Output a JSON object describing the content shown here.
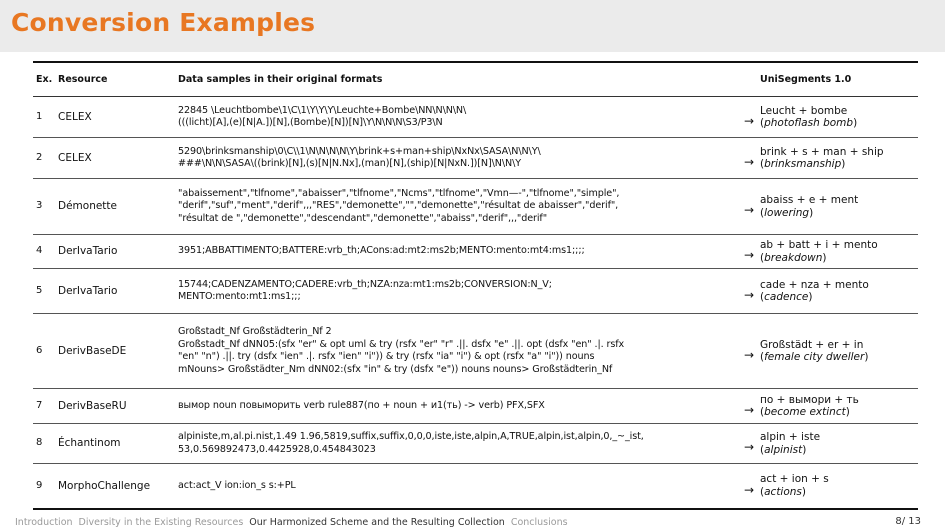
{
  "slide": {
    "title": "Conversion Examples",
    "accent_color": "#e87722",
    "page": "8/ 13"
  },
  "table": {
    "headers": {
      "ex": "Ex.",
      "resource": "Resource",
      "data": "Data samples in their original formats",
      "unisegments": "UniSegments 1.0"
    },
    "arrow": "→",
    "rows": [
      {
        "ex": "1",
        "resource": "CELEX",
        "data": [
          "22845 \\Leuchtbombe\\1\\C\\1\\Y\\Y\\Y\\Leuchte+Bombe\\NN\\N\\N\\N\\",
          "(((licht)[A],(e)[N|A.])[N],(Bombe)[N])[N]\\Y\\N\\N\\N\\S3/P3\\N"
        ],
        "segmentation": "Leucht + bombe",
        "gloss": "photoflash bomb"
      },
      {
        "ex": "2",
        "resource": "CELEX",
        "data": [
          "5290\\brinksmanship\\0\\C\\\\1\\N\\N\\N\\N\\Y\\brink+s+man+ship\\NxNx\\SASA\\N\\N\\Y\\",
          "###\\N\\N\\SASA\\((brink)[N],(s)[N|N.Nx],(man)[N],(ship)[N|NxN.])[N]\\N\\N\\Y"
        ],
        "segmentation": "brink + s + man + ship",
        "gloss": "brinksmanship"
      },
      {
        "ex": "3",
        "resource": "Démonette",
        "data": [
          "\"abaissement\",\"tlfnome\",\"abaisser\",\"tlfnome\",\"Ncms\",\"tlfnome\",\"Vmn—-\",\"tlfnome\",\"simple\",",
          "\"derif\",\"suf\",\"ment\",\"derif\",,,\"RES\",\"demonette\",\"\",\"demonette\",\"résultat de abaisser\",\"derif\",",
          "\"résultat de \",\"demonette\",\"descendant\",\"demonette\",\"abaiss\",\"derif\",,,\"derif\""
        ],
        "segmentation": "abaiss + e + ment",
        "gloss": "lowering"
      },
      {
        "ex": "4",
        "resource": "DerIvaTario",
        "data": [
          "3951;ABBATTIMENTO;BATTERE:vrb_th;ACons:ad:mt2:ms2b;MENTO:mento:mt4:ms1;;;;"
        ],
        "segmentation": "ab + batt + i + mento",
        "gloss": "breakdown"
      },
      {
        "ex": "5",
        "resource": "DerIvaTario",
        "data": [
          "15744;CADENZAMENTO;CADERE:vrb_th;NZA:nza:mt1:ms2b;CONVERSION:N_V;",
          "MENTO:mento:mt1:ms1;;;"
        ],
        "segmentation": "cade + nza + mento",
        "gloss": "cadence"
      },
      {
        "ex": "6",
        "resource": "DerivBaseDE",
        "data": [
          "Großstadt_Nf Großstädterin_Nf 2",
          "Großstadt_Nf dNN05:(sfx \"er\" & opt uml & try (rsfx \"er\" \"r\" .||. dsfx \"e\" .||. opt (dsfx \"en\" .|. rsfx",
          "\"en\" \"n\") .||. try (dsfx \"ien\" .|. rsfx \"ien\" \"i\")) & try (rsfx \"ia\" \"i\") & opt (rsfx \"a\" \"i\")) nouns",
          "mNouns> Großstädter_Nm dNN02:(sfx \"in\" & try (dsfx \"e\")) nouns nouns> Großstädterin_Nf"
        ],
        "segmentation": "Großstädt + er + in",
        "gloss": "female city dweller"
      },
      {
        "ex": "7",
        "resource": "DerivBaseRU",
        "data": [
          "вымор noun повыморить verb rule887(по + noun + и1(ть) -> verb) PFX,SFX"
        ],
        "segmentation": "по + вымори + ть",
        "gloss": "become extinct"
      },
      {
        "ex": "8",
        "resource": "Échantinom",
        "data": [
          "alpiniste,m,al.pi.nist,1.49 1.96,5819,suffix,suffix,0,0,0,iste,iste,alpin,A,TRUE,alpin,ist,alpin,0,_~_ist,",
          "53,0.569892473,0.4425928,0.454843023"
        ],
        "segmentation": "alpin + iste",
        "gloss": "alpinist"
      },
      {
        "ex": "9",
        "resource": "MorphoChallenge",
        "data": [
          "act:act_V ion:ion_s s:+PL"
        ],
        "segmentation": "act + ion + s",
        "gloss": "actions"
      }
    ]
  },
  "footer": {
    "sections": [
      "Introduction",
      "Diversity in the Existing Resources",
      "Our Harmonized Scheme and the Resulting Collection",
      "Conclusions"
    ],
    "active_index": 2
  }
}
